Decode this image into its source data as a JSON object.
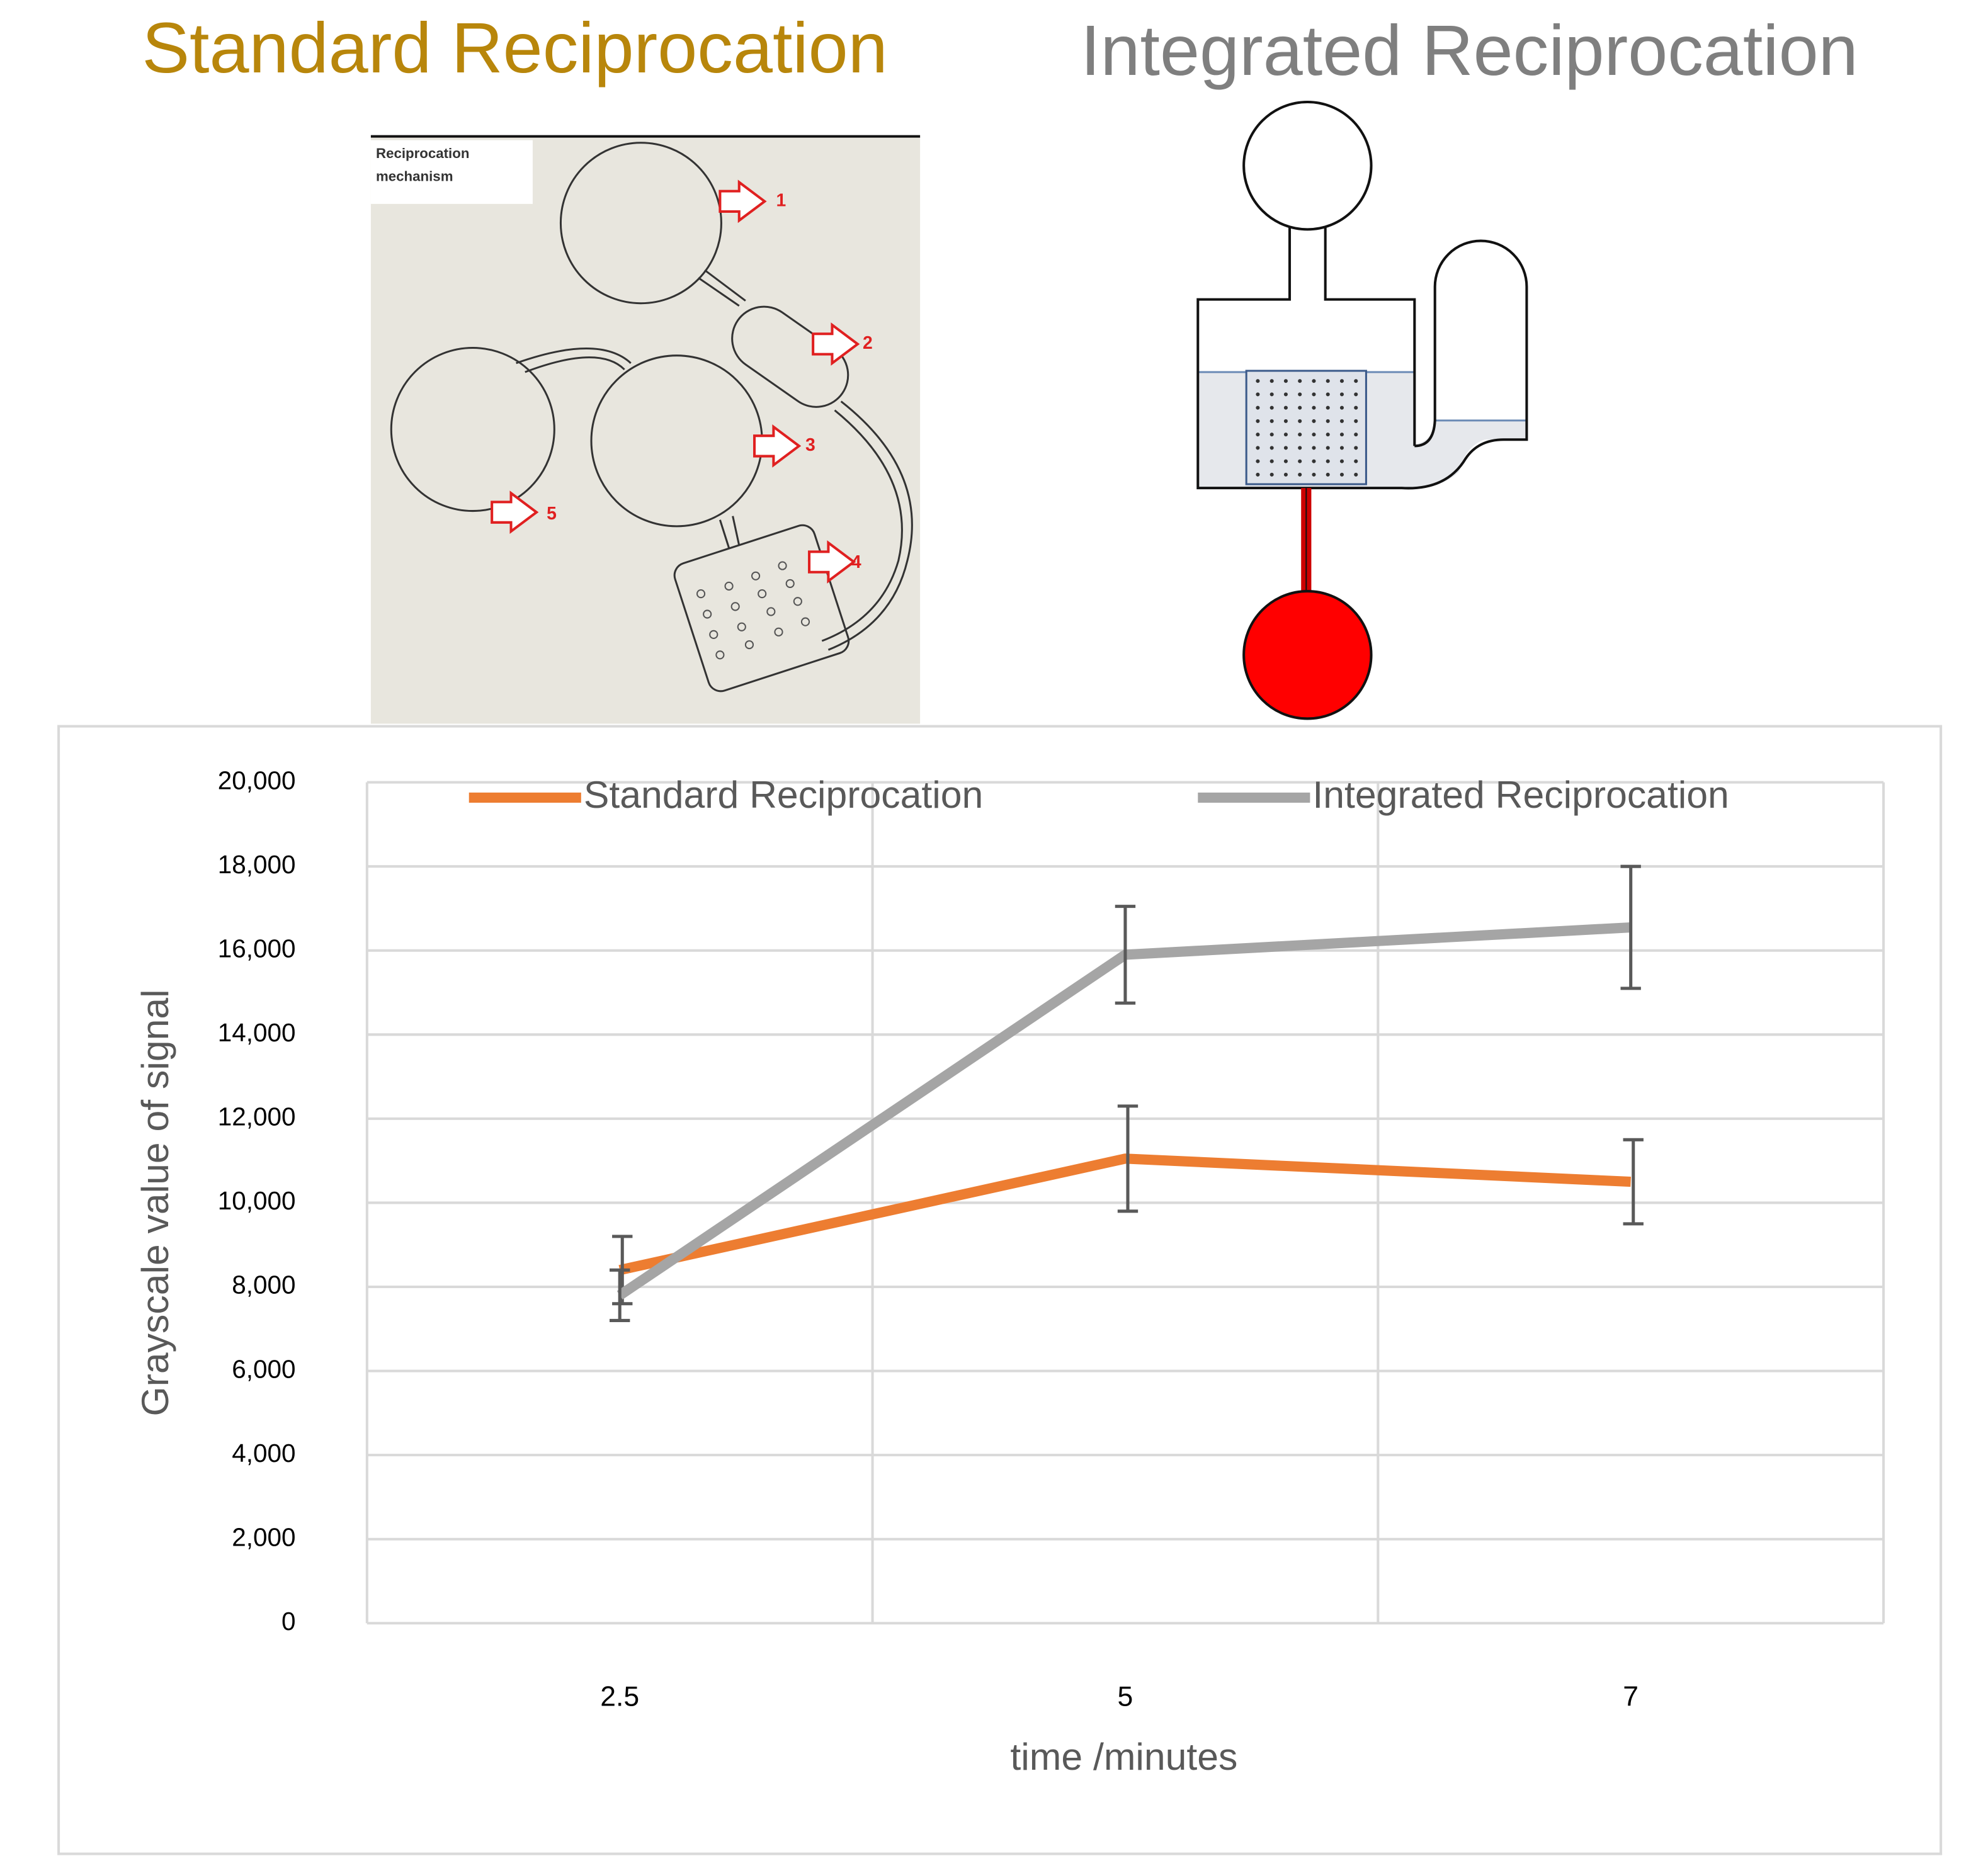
{
  "standard_title": "Standard Reciprocation",
  "integrated_title": "Integrated Reciprocation",
  "mechanism": {
    "caption": "Reciprocation mechanism",
    "steps": [
      "1",
      "2",
      "3",
      "4",
      "5"
    ]
  },
  "chart_data": {
    "type": "line",
    "x_label": "time /minutes",
    "y_label": "Grayscale value of signal",
    "categories": [
      "2.5",
      "5",
      "7"
    ],
    "series": [
      {
        "name": "Standard Reciprocation",
        "color": "#ed7d31",
        "values": [
          8400,
          11050,
          10500
        ],
        "errors": [
          800,
          1250,
          1000
        ]
      },
      {
        "name": "Integrated Reciprocation",
        "color": "#a5a5a5",
        "values": [
          7800,
          15900,
          16550
        ],
        "errors": [
          600,
          1150,
          1450
        ]
      }
    ],
    "error_bar_color": "#595959",
    "ylim": [
      0,
      20000
    ],
    "yticks": [
      0,
      {
        "value": 2000,
        "label": "2,000"
      },
      {
        "value": 4000,
        "label": "4,000"
      },
      {
        "value": 6000,
        "label": "6,000"
      },
      {
        "value": 8000,
        "label": "8,000"
      },
      {
        "value": 10000,
        "label": "10,000"
      },
      {
        "value": 12000,
        "label": "12,000"
      },
      {
        "value": 14000,
        "label": "14,000"
      },
      {
        "value": 16000,
        "label": "16,000"
      },
      {
        "value": 18000,
        "label": "18,000"
      },
      {
        "value": 20000,
        "label": "20,000"
      }
    ],
    "grid": true,
    "legend": "top"
  }
}
